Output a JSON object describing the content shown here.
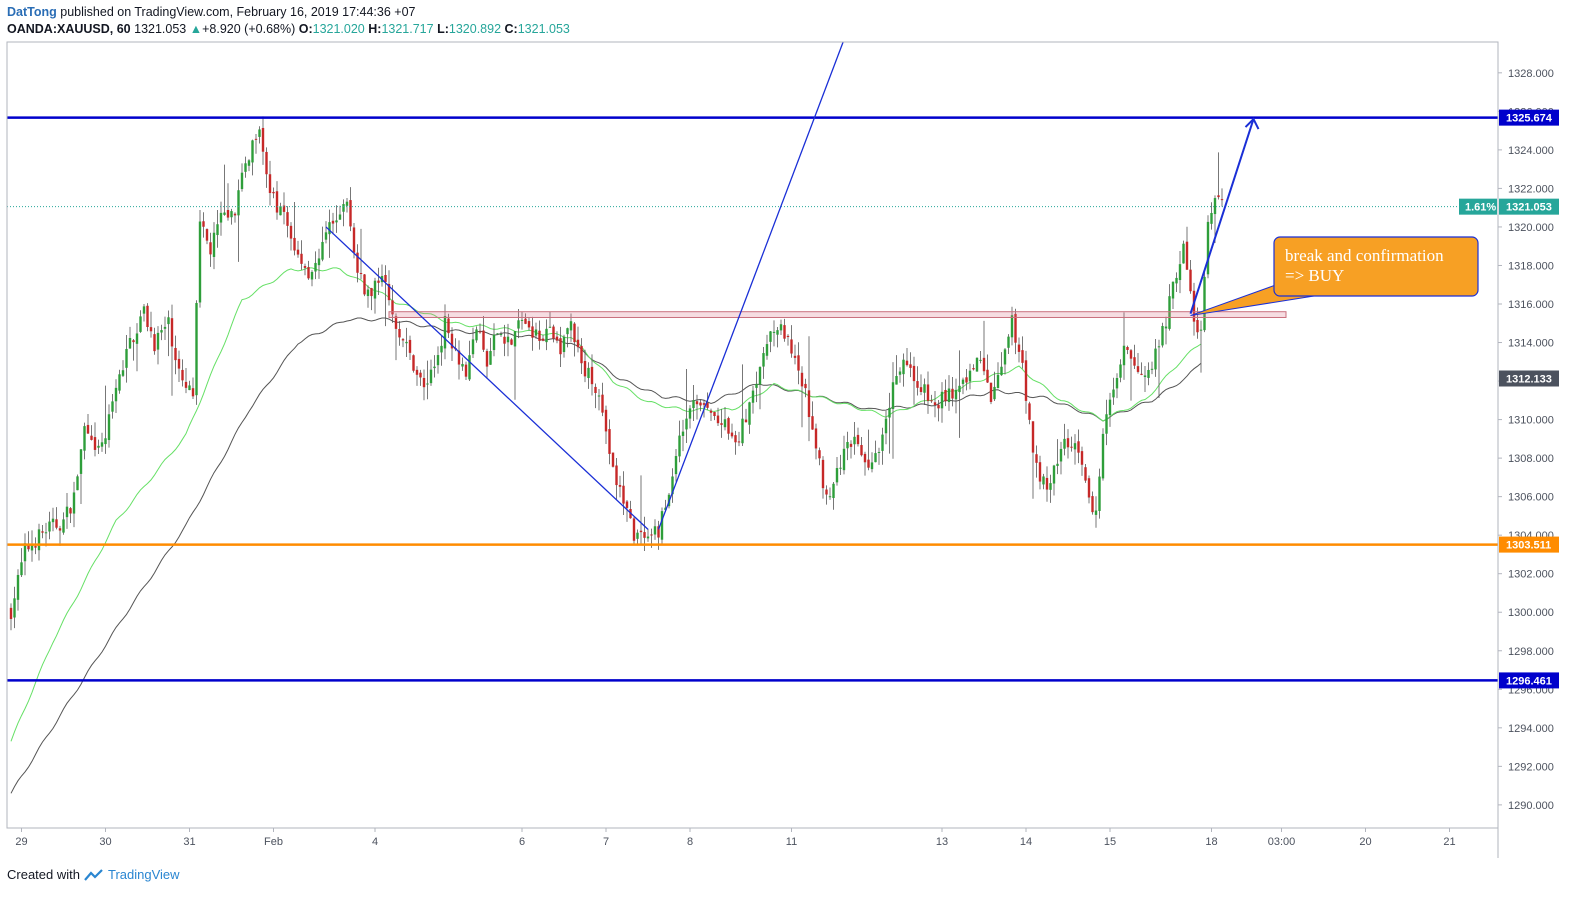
{
  "header": {
    "author": "DatTong",
    "published": "published on TradingView.com, February 16, 2019 17:44:36 +07",
    "symbol": "OANDA:XAUUSD, 60",
    "last": "1321.053",
    "change_arrow": "▲",
    "change": "+8.920 (+0.68%)",
    "o_label": "O:",
    "o_value": "1321.020",
    "h_label": "H:",
    "h_value": "1321.717",
    "l_label": "L:",
    "l_value": "1320.892",
    "c_label": "C:",
    "c_value": "1321.053"
  },
  "footer": {
    "created_with": "Created with",
    "brand": "TradingView"
  },
  "chart_data": {
    "type": "candlestick",
    "ylim": [
      1288.8,
      1329.6
    ],
    "y_ticks": [
      1290,
      1292,
      1294,
      1296,
      1298,
      1300,
      1302,
      1304,
      1306,
      1308,
      1310,
      1312,
      1314,
      1316,
      1318,
      1320,
      1322,
      1324,
      1326,
      1328
    ],
    "x_tick_labels": [
      "29",
      "30",
      "31",
      "Feb",
      "4",
      "6",
      "7",
      "8",
      "11",
      "13",
      "14",
      "15",
      "18",
      "03:00",
      "20",
      "21"
    ],
    "x_tick_index": [
      3,
      27,
      51,
      75,
      104,
      146,
      170,
      194,
      223,
      266,
      290,
      314,
      343,
      363,
      387,
      411
    ],
    "grid": false,
    "horizontal_levels": [
      {
        "name": "resistance",
        "value": 1325.674,
        "label": "1325.674",
        "color": "#0000cc"
      },
      {
        "name": "support",
        "value": 1303.511,
        "label": "1303.511",
        "color": "#ff8c00"
      },
      {
        "name": "lower",
        "value": 1296.461,
        "label": "1296.461",
        "color": "#0000cc"
      }
    ],
    "price_labels": [
      {
        "value": 1321.053,
        "label": "1321.053",
        "pct": "1.61%",
        "color": "#26a69a"
      },
      {
        "value": 1312.133,
        "label": "1312.133",
        "color": "#4c525e"
      }
    ],
    "breakout_zone": [
      1315.3,
      1315.6
    ],
    "annotation": {
      "line1": "break and confirmation",
      "line2": "=> BUY"
    },
    "anchors": [
      [
        0,
        1300.1
      ],
      [
        4,
        1303.2
      ],
      [
        10,
        1304.3
      ],
      [
        15,
        1304.7
      ],
      [
        18,
        1306.0
      ],
      [
        21,
        1309.5
      ],
      [
        24,
        1308.1
      ],
      [
        27,
        1309.1
      ],
      [
        30,
        1311.5
      ],
      [
        34,
        1314.0
      ],
      [
        38,
        1315.6
      ],
      [
        41,
        1314.0
      ],
      [
        45,
        1315.0
      ],
      [
        49,
        1311.7
      ],
      [
        52,
        1311.3
      ],
      [
        54,
        1320.0
      ],
      [
        57,
        1318.8
      ],
      [
        60,
        1320.4
      ],
      [
        64,
        1321.0
      ],
      [
        68,
        1323.8
      ],
      [
        71,
        1325.5
      ],
      [
        74,
        1321.6
      ],
      [
        78,
        1320.5
      ],
      [
        82,
        1318.5
      ],
      [
        85,
        1317.7
      ],
      [
        88,
        1318.2
      ],
      [
        92,
        1320.6
      ],
      [
        96,
        1321.2
      ],
      [
        99,
        1317.5
      ],
      [
        103,
        1316.3
      ],
      [
        106,
        1317.8
      ],
      [
        108,
        1316.0
      ],
      [
        111,
        1314.6
      ],
      [
        114,
        1313.3
      ],
      [
        118,
        1311.6
      ],
      [
        121,
        1312.8
      ],
      [
        124,
        1315.0
      ],
      [
        127,
        1313.7
      ],
      [
        130,
        1312.4
      ],
      [
        133,
        1314.8
      ],
      [
        136,
        1312.8
      ],
      [
        139,
        1314.6
      ],
      [
        143,
        1314.0
      ],
      [
        146,
        1315.3
      ],
      [
        149,
        1314.3
      ],
      [
        153,
        1314.6
      ],
      [
        157,
        1313.8
      ],
      [
        160,
        1315.0
      ],
      [
        163,
        1312.7
      ],
      [
        166,
        1312.2
      ],
      [
        169,
        1310.6
      ],
      [
        172,
        1307.2
      ],
      [
        175,
        1305.8
      ],
      [
        178,
        1304.1
      ],
      [
        182,
        1303.5
      ],
      [
        185,
        1304.3
      ],
      [
        188,
        1306.1
      ],
      [
        191,
        1309.2
      ],
      [
        194,
        1310.8
      ],
      [
        198,
        1310.6
      ],
      [
        201,
        1310.1
      ],
      [
        204,
        1309.6
      ],
      [
        207,
        1308.5
      ],
      [
        210,
        1310.2
      ],
      [
        214,
        1313.0
      ],
      [
        218,
        1315.0
      ],
      [
        221,
        1314.4
      ],
      [
        224,
        1312.8
      ],
      [
        227,
        1311.3
      ],
      [
        230,
        1308.6
      ],
      [
        233,
        1306.0
      ],
      [
        236,
        1307.1
      ],
      [
        239,
        1309.1
      ],
      [
        242,
        1308.6
      ],
      [
        245,
        1307.8
      ],
      [
        248,
        1308.7
      ],
      [
        251,
        1311.0
      ],
      [
        255,
        1313.3
      ],
      [
        258,
        1312.2
      ],
      [
        261,
        1311.4
      ],
      [
        264,
        1310.6
      ],
      [
        267,
        1311.3
      ],
      [
        271,
        1311.4
      ],
      [
        274,
        1312.4
      ],
      [
        277,
        1313.1
      ],
      [
        280,
        1311.0
      ],
      [
        283,
        1312.5
      ],
      [
        286,
        1315.0
      ],
      [
        289,
        1313.0
      ],
      [
        292,
        1308.0
      ],
      [
        296,
        1306.4
      ],
      [
        299,
        1307.8
      ],
      [
        302,
        1309.0
      ],
      [
        305,
        1308.3
      ],
      [
        308,
        1305.8
      ],
      [
        310,
        1305.0
      ],
      [
        312,
        1309.7
      ],
      [
        315,
        1311.9
      ],
      [
        318,
        1313.5
      ],
      [
        321,
        1312.7
      ],
      [
        324,
        1312.6
      ],
      [
        327,
        1313.3
      ],
      [
        330,
        1315.2
      ],
      [
        333,
        1317.7
      ],
      [
        335,
        1318.9
      ],
      [
        337,
        1316.5
      ],
      [
        338,
        1315.0
      ],
      [
        340,
        1314.6
      ],
      [
        342,
        1319.9
      ],
      [
        344,
        1321.3
      ],
      [
        346,
        1321.05
      ]
    ],
    "ma_fast": [
      [
        0,
        1293.3
      ],
      [
        12,
        1298.5
      ],
      [
        30,
        1304.7
      ],
      [
        50,
        1309.2
      ],
      [
        66,
        1316.2
      ],
      [
        80,
        1317.8
      ],
      [
        94,
        1317.8
      ],
      [
        110,
        1316.1
      ],
      [
        126,
        1315.0
      ],
      [
        146,
        1314.6
      ],
      [
        160,
        1314.3
      ],
      [
        172,
        1312.0
      ],
      [
        182,
        1310.9
      ],
      [
        192,
        1310.5
      ],
      [
        206,
        1310.5
      ],
      [
        218,
        1311.8
      ],
      [
        234,
        1311.0
      ],
      [
        250,
        1310.2
      ],
      [
        262,
        1311.0
      ],
      [
        276,
        1312.0
      ],
      [
        288,
        1312.7
      ],
      [
        300,
        1311.0
      ],
      [
        312,
        1310.0
      ],
      [
        324,
        1311.0
      ],
      [
        334,
        1313.0
      ],
      [
        340,
        1314.0
      ]
    ],
    "ma_slow": [
      [
        0,
        1290.6
      ],
      [
        16,
        1295.2
      ],
      [
        32,
        1299.7
      ],
      [
        50,
        1304.5
      ],
      [
        68,
        1310.5
      ],
      [
        82,
        1314.0
      ],
      [
        96,
        1315.2
      ],
      [
        108,
        1315.2
      ],
      [
        126,
        1314.6
      ],
      [
        144,
        1314.4
      ],
      [
        160,
        1314.0
      ],
      [
        174,
        1312.1
      ],
      [
        186,
        1311.2
      ],
      [
        200,
        1310.9
      ],
      [
        214,
        1311.9
      ],
      [
        228,
        1311.3
      ],
      [
        246,
        1310.5
      ],
      [
        264,
        1310.8
      ],
      [
        282,
        1311.5
      ],
      [
        296,
        1311.1
      ],
      [
        312,
        1310.0
      ],
      [
        326,
        1311.0
      ],
      [
        336,
        1312.2
      ],
      [
        340,
        1313.0
      ]
    ],
    "trendlines": [
      {
        "from": [
          90,
          1320.0
        ],
        "to": [
          182,
          1304.3
        ]
      },
      {
        "from": [
          185,
          1304.3
        ],
        "to": [
          239,
          1330.2
        ]
      },
      {
        "from": [
          337,
          1315.5
        ],
        "to": [
          355,
          1325.6
        ]
      }
    ]
  }
}
